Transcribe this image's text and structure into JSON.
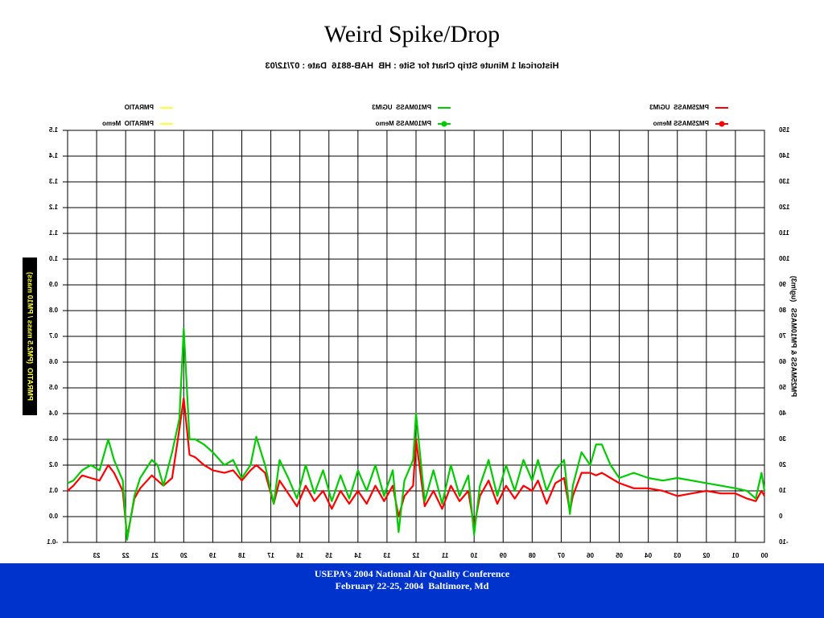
{
  "chart_data": {
    "type": "line",
    "title": "Weird Spike/Drop",
    "subtitle": "Historical 1 Minute Strip Chart for Site : HB  HAB-8816  Date : 07/12/03",
    "y_label": "PM25MASS & PM10MASS   (ug/m3)",
    "y2_label": "PMRATIO  (PM2.5 mass / PM10 mass)",
    "mirrored": true,
    "grid": true,
    "xlim": [
      0,
      24
    ],
    "xticks": [
      {
        "value": 0,
        "label": "00"
      },
      {
        "value": 1,
        "label": "01"
      },
      {
        "value": 2,
        "label": "02"
      },
      {
        "value": 3,
        "label": "03"
      },
      {
        "value": 4,
        "label": "04"
      },
      {
        "value": 5,
        "label": "05"
      },
      {
        "value": 6,
        "label": "06"
      },
      {
        "value": 7,
        "label": "07"
      },
      {
        "value": 8,
        "label": "08"
      },
      {
        "value": 9,
        "label": "09"
      },
      {
        "value": 10,
        "label": "10"
      },
      {
        "value": 11,
        "label": "11"
      },
      {
        "value": 12,
        "label": "12"
      },
      {
        "value": 13,
        "label": "13"
      },
      {
        "value": 14,
        "label": "14"
      },
      {
        "value": 15,
        "label": "15"
      },
      {
        "value": 16,
        "label": "16"
      },
      {
        "value": 17,
        "label": "17"
      },
      {
        "value": 18,
        "label": "18"
      },
      {
        "value": 19,
        "label": "19"
      },
      {
        "value": 20,
        "label": "20"
      },
      {
        "value": 21,
        "label": "21"
      },
      {
        "value": 22,
        "label": "22"
      },
      {
        "value": 23,
        "label": "23"
      }
    ],
    "ylim": [
      -10,
      150
    ],
    "yticks": [
      -10,
      0,
      10,
      20,
      30,
      40,
      50,
      60,
      70,
      80,
      90,
      100,
      110,
      120,
      130,
      140,
      150
    ],
    "y2lim": [
      -0.1,
      1.5
    ],
    "y2ticks": [
      -0.1,
      {
        "value": 0,
        "label": "0.0"
      },
      0.1,
      0.2,
      0.3,
      0.4,
      0.5,
      0.6,
      0.7,
      0.8,
      0.9,
      {
        "value": 1,
        "label": "1.0"
      },
      1.1,
      1.2,
      1.3,
      1.4,
      1.5
    ],
    "x": [
      0,
      0.1,
      0.3,
      0.6,
      1,
      1.5,
      2,
      2.5,
      3,
      3.5,
      4,
      4.5,
      5,
      5.3,
      5.6,
      5.8,
      6,
      6.3,
      6.6,
      6.7,
      6.9,
      7.2,
      7.5,
      7.8,
      8,
      8.3,
      8.6,
      8.9,
      9.2,
      9.5,
      9.8,
      10,
      10.2,
      10.5,
      10.8,
      11.1,
      11.4,
      11.7,
      12,
      12.1,
      12.4,
      12.6,
      12.8,
      13.1,
      13.4,
      13.7,
      14,
      14.3,
      14.6,
      14.9,
      15.2,
      15.5,
      15.8,
      16.1,
      16.4,
      16.7,
      16.9,
      17.2,
      17.5,
      17.7,
      18,
      18.3,
      18.6,
      19,
      19.3,
      19.6,
      19.8,
      20,
      20.15,
      20.4,
      20.7,
      20.9,
      21.1,
      21.5,
      21.7,
      21.95,
      22.1,
      22.4,
      22.6,
      22.9,
      23.2,
      23.5,
      23.8,
      24
    ],
    "series": [
      {
        "name": "PM25MASS  UG/M3",
        "color": "#ff0000",
        "marker": "none",
        "values": [
          8,
          10,
          6,
          7,
          9,
          9,
          10,
          9,
          8,
          10,
          11,
          11,
          13,
          15,
          17,
          16,
          17,
          17,
          8,
          2,
          15,
          13,
          5,
          14,
          10,
          12,
          7,
          12,
          5,
          14,
          8,
          -4,
          10,
          6,
          12,
          3,
          10,
          4,
          30,
          12,
          8,
          0,
          12,
          6,
          12,
          5,
          10,
          5,
          10,
          3,
          10,
          6,
          12,
          4,
          9,
          14,
          5,
          17,
          20,
          18,
          14,
          18,
          17,
          18,
          20,
          23,
          24,
          46,
          34,
          15,
          12,
          14,
          16,
          11,
          7,
          -8,
          10,
          17,
          20,
          14,
          15,
          16,
          12,
          10
        ]
      },
      {
        "name": "PM25MASS Memo",
        "color": "#ff0000",
        "marker": "circle",
        "values": [
          null,
          null,
          null,
          null,
          null,
          null,
          null,
          null,
          null,
          null,
          null,
          null,
          null,
          null,
          null,
          null,
          null,
          null,
          null,
          null,
          null,
          null,
          null,
          null,
          null,
          null,
          null,
          null,
          null,
          null,
          null,
          null,
          null,
          null,
          null,
          null,
          null,
          null,
          null,
          null,
          null,
          null,
          null,
          null,
          null,
          null,
          null,
          null,
          null,
          null,
          null,
          null,
          null,
          null,
          null,
          null,
          null,
          null,
          null,
          null,
          null,
          null,
          null,
          null,
          null,
          null,
          null,
          null,
          null,
          null,
          null,
          null,
          null,
          null,
          null,
          null,
          null,
          null,
          null,
          null,
          null,
          null,
          null,
          null
        ]
      },
      {
        "name": "PM10MASS  UG/M3",
        "color": "#00cc00",
        "marker": "none",
        "values": [
          10,
          17,
          7,
          10,
          11,
          12,
          13,
          14,
          15,
          14,
          15,
          17,
          15,
          20,
          28,
          28,
          20,
          25,
          12,
          1,
          22,
          18,
          10,
          22,
          14,
          22,
          10,
          20,
          8,
          22,
          12,
          -7,
          16,
          8,
          20,
          5,
          18,
          6,
          40,
          22,
          14,
          -6,
          18,
          8,
          20,
          10,
          18,
          7,
          16,
          6,
          18,
          9,
          20,
          7,
          15,
          22,
          5,
          20,
          31,
          20,
          15,
          22,
          20,
          25,
          28,
          30,
          30,
          73,
          38,
          25,
          12,
          20,
          22,
          15,
          8,
          -9,
          14,
          22,
          30,
          18,
          20,
          18,
          14,
          13
        ]
      },
      {
        "name": "PM10MASS Memo",
        "color": "#00cc00",
        "marker": "circle",
        "values": [
          null,
          null,
          null,
          null,
          null,
          null,
          null,
          null,
          null,
          null,
          null,
          null,
          null,
          null,
          null,
          null,
          null,
          null,
          null,
          null,
          null,
          null,
          null,
          null,
          null,
          null,
          null,
          null,
          null,
          null,
          null,
          null,
          null,
          null,
          null,
          null,
          null,
          null,
          null,
          null,
          null,
          null,
          null,
          null,
          null,
          null,
          null,
          null,
          null,
          null,
          null,
          null,
          null,
          null,
          null,
          null,
          null,
          null,
          null,
          null,
          null,
          null,
          null,
          null,
          null,
          null,
          null,
          null,
          null,
          null,
          null,
          null,
          null,
          null,
          null,
          null,
          null,
          null,
          null,
          null,
          null,
          null,
          null,
          null
        ]
      },
      {
        "name": "PMRATIO",
        "color": "#ffff33",
        "marker": "none",
        "axis": "y2",
        "values": [
          null,
          null,
          null,
          null,
          null,
          null,
          null,
          null,
          null,
          null,
          null,
          null,
          null,
          null,
          null,
          null,
          null,
          null,
          null,
          null,
          null,
          null,
          null,
          null,
          null,
          null,
          null,
          null,
          null,
          null,
          null,
          null,
          null,
          null,
          null,
          null,
          null,
          null,
          null,
          null,
          null,
          null,
          null,
          null,
          null,
          null,
          null,
          null,
          null,
          null,
          null,
          null,
          null,
          null,
          null,
          null,
          null,
          null,
          null,
          null,
          null,
          null,
          null,
          null,
          null,
          null,
          null,
          null,
          null,
          null,
          null,
          null,
          null,
          null,
          null,
          null,
          null,
          null,
          null,
          null,
          null,
          null,
          null,
          null
        ]
      },
      {
        "name": "PMRATIO  Memo",
        "color": "#ffff33",
        "marker": "none",
        "axis": "y2",
        "values": [
          null,
          null,
          null,
          null,
          null,
          null,
          null,
          null,
          null,
          null,
          null,
          null,
          null,
          null,
          null,
          null,
          null,
          null,
          null,
          null,
          null,
          null,
          null,
          null,
          null,
          null,
          null,
          null,
          null,
          null,
          null,
          null,
          null,
          null,
          null,
          null,
          null,
          null,
          null,
          null,
          null,
          null,
          null,
          null,
          null,
          null,
          null,
          null,
          null,
          null,
          null,
          null,
          null,
          null,
          null,
          null,
          null,
          null,
          null,
          null,
          null,
          null,
          null,
          null,
          null,
          null,
          null,
          null,
          null,
          null,
          null,
          null,
          null,
          null,
          null,
          null,
          null,
          null,
          null,
          null,
          null,
          null,
          null,
          null
        ]
      }
    ]
  },
  "footer": {
    "line1": "USEPA’s 2004 National Air Quality Conference",
    "line2": "February 22-25, 2004  Baltimore, Md"
  }
}
